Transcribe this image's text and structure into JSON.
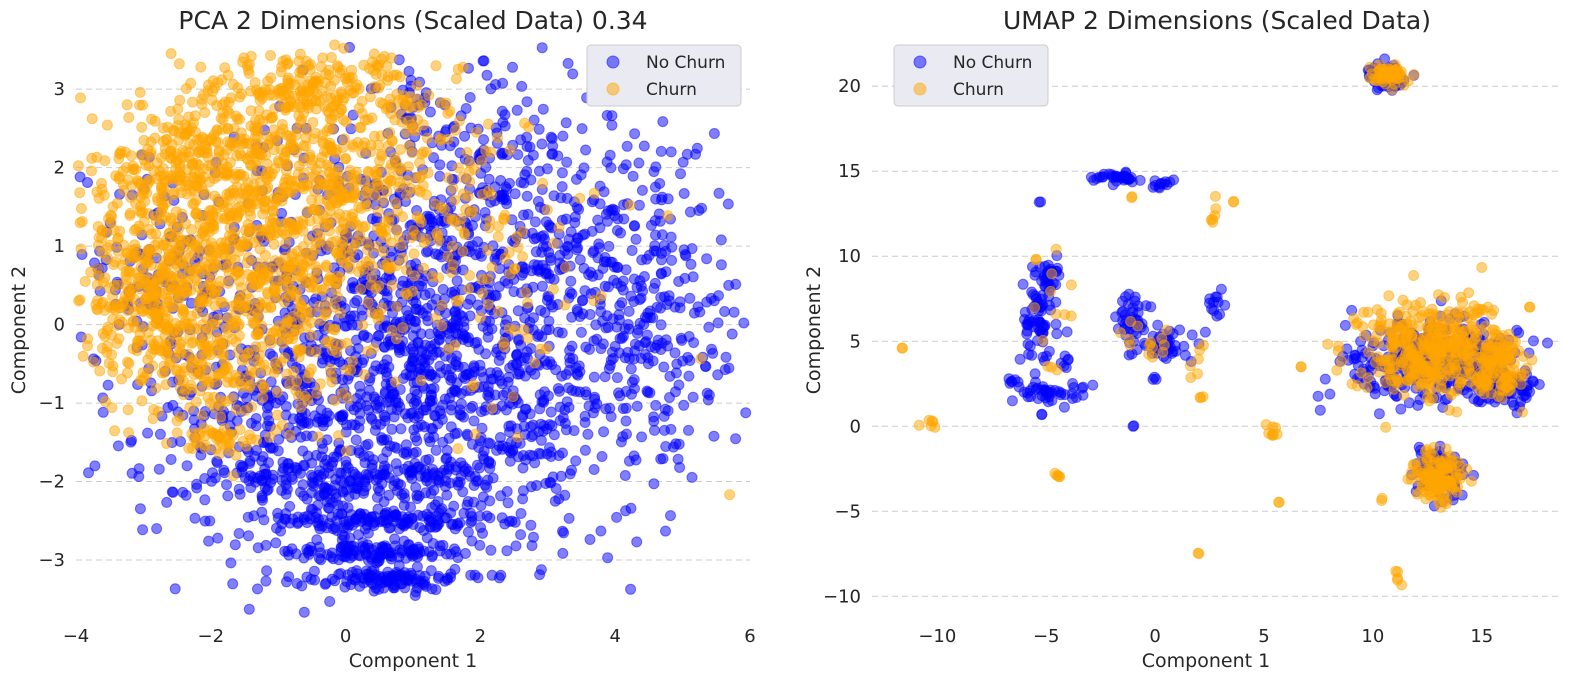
{
  "colors": {
    "no_churn": "#0000ff",
    "churn": "#ffa500",
    "grid": "#cccccc",
    "legend_bg": "#eaeaf2"
  },
  "chart_data": [
    {
      "type": "scatter",
      "title": "PCA  2 Dimensions (Scaled Data) 0.34",
      "xlabel": "Component 1",
      "ylabel": "Component 2",
      "xlim": [
        -4,
        6
      ],
      "ylim": [
        -3.7,
        3.6
      ],
      "xticks": [
        -4,
        -2,
        0,
        2,
        4,
        6
      ],
      "xtick_labels": [
        "−4",
        "−2",
        "0",
        "2",
        "4",
        "6"
      ],
      "yticks": [
        -3,
        -2,
        -1,
        0,
        1,
        2,
        3
      ],
      "ytick_labels": [
        "−3",
        "−2",
        "−1",
        "0",
        "1",
        "2",
        "3"
      ],
      "grid": "horizontal-dashed",
      "legend_position": "top-right",
      "series": [
        {
          "name": "No Churn",
          "color_key": "no_churn",
          "clusters": [
            {
              "cx": 1.2,
              "cy": -0.4,
              "sx": 1.7,
              "sy": 1.3,
              "n": 1500
            },
            {
              "cx": 0.6,
              "cy": -3.25,
              "sx": 0.55,
              "sy": 0.06,
              "n": 110
            },
            {
              "cx": 0.4,
              "cy": -2.9,
              "sx": 0.75,
              "sy": 0.06,
              "n": 110
            },
            {
              "cx": 0.4,
              "cy": -2.5,
              "sx": 1.0,
              "sy": 0.1,
              "n": 130
            },
            {
              "cx": -0.2,
              "cy": -2.0,
              "sx": 1.3,
              "sy": 0.15,
              "n": 140
            },
            {
              "cx": -1.5,
              "cy": -1.3,
              "sx": 1.1,
              "sy": 0.45,
              "n": 120
            },
            {
              "cx": 4.7,
              "cy": -0.2,
              "sx": 0.6,
              "sy": 0.8,
              "n": 150
            },
            {
              "cx": 2.0,
              "cy": 2.2,
              "sx": 1.3,
              "sy": 0.55,
              "n": 160
            },
            {
              "cx": -2.6,
              "cy": 0.7,
              "sx": 0.7,
              "sy": 0.6,
              "n": 120
            },
            {
              "cx": 3.5,
              "cy": 1.0,
              "sx": 0.9,
              "sy": 0.7,
              "n": 150
            }
          ]
        },
        {
          "name": "Churn",
          "color_key": "churn",
          "clusters": [
            {
              "cx": -1.6,
              "cy": 1.0,
              "sx": 1.1,
              "sy": 0.8,
              "n": 850
            },
            {
              "cx": -0.8,
              "cy": 2.5,
              "sx": 1.1,
              "sy": 0.45,
              "n": 260
            },
            {
              "cx": -0.2,
              "cy": 3.1,
              "sx": 0.9,
              "sy": 0.18,
              "n": 120
            },
            {
              "cx": -3.0,
              "cy": 0.3,
              "sx": 0.45,
              "sy": 0.65,
              "n": 200
            },
            {
              "cx": -2.4,
              "cy": 2.1,
              "sx": 0.55,
              "sy": 0.3,
              "n": 120
            },
            {
              "cx": 0.6,
              "cy": 1.6,
              "sx": 1.0,
              "sy": 0.7,
              "n": 230
            },
            {
              "cx": -1.6,
              "cy": -0.6,
              "sx": 0.7,
              "sy": 0.45,
              "n": 140
            },
            {
              "cx": -1.9,
              "cy": -1.5,
              "sx": 0.3,
              "sy": 0.08,
              "n": 40
            },
            {
              "cx": 1.6,
              "cy": 0.2,
              "sx": 1.3,
              "sy": 0.9,
              "n": 70
            }
          ]
        }
      ]
    },
    {
      "type": "scatter",
      "title": "UMAP  2 Dimensions (Scaled Data)",
      "xlabel": "Component 1",
      "ylabel": "Component 2",
      "xlim": [
        -13,
        18.5
      ],
      "ylim": [
        -11.1,
        22.6
      ],
      "xticks": [
        -10,
        -5,
        0,
        5,
        10,
        15
      ],
      "xtick_labels": [
        "−10",
        "−5",
        "0",
        "5",
        "10",
        "15"
      ],
      "yticks": [
        -10,
        -5,
        0,
        5,
        10,
        15,
        20
      ],
      "ytick_labels": [
        "−10",
        "−5",
        "0",
        "5",
        "10",
        "15",
        "20"
      ],
      "grid": "horizontal-dashed",
      "legend_position": "top-left",
      "series": [
        {
          "name": "No Churn",
          "color_key": "no_churn",
          "clusters": [
            {
              "cx": 10.6,
              "cy": 20.6,
              "sx": 0.45,
              "sy": 0.35,
              "n": 80
            },
            {
              "cx": 12.8,
              "cy": 3.8,
              "sx": 2.0,
              "sy": 1.2,
              "n": 320
            },
            {
              "cx": 16.0,
              "cy": 2.2,
              "sx": 0.7,
              "sy": 0.6,
              "n": 80
            },
            {
              "cx": 13.0,
              "cy": -2.6,
              "sx": 0.55,
              "sy": 0.7,
              "n": 80
            },
            {
              "cx": -5.3,
              "cy": 6.5,
              "sx": 0.45,
              "sy": 1.4,
              "n": 70
            },
            {
              "cx": -4.9,
              "cy": 8.8,
              "sx": 0.3,
              "sy": 0.4,
              "n": 25
            },
            {
              "cx": -4.8,
              "cy": 2.0,
              "sx": 0.8,
              "sy": 0.4,
              "n": 45
            },
            {
              "cx": -1.1,
              "cy": 6.2,
              "sx": 0.35,
              "sy": 0.9,
              "n": 40
            },
            {
              "cx": 0.6,
              "cy": 4.8,
              "sx": 0.7,
              "sy": 0.6,
              "n": 40
            },
            {
              "cx": -1.6,
              "cy": 14.6,
              "sx": 0.4,
              "sy": 0.15,
              "n": 25
            },
            {
              "cx": 0.3,
              "cy": 14.3,
              "sx": 0.3,
              "sy": 0.15,
              "n": 12
            },
            {
              "cx": 2.8,
              "cy": 7.4,
              "sx": 0.2,
              "sy": 0.5,
              "n": 12
            },
            {
              "cx": -6.6,
              "cy": 2.6,
              "sx": 0.2,
              "sy": 0.12,
              "n": 6
            },
            {
              "cx": -2.7,
              "cy": 14.6,
              "sx": 0.2,
              "sy": 0.06,
              "n": 6
            },
            {
              "cx": -4.2,
              "cy": 3.7,
              "sx": 0.12,
              "sy": 0.25,
              "n": 6
            },
            {
              "cx": -5.3,
              "cy": 13.2,
              "sx": 0.02,
              "sy": 0.02,
              "n": 2
            },
            {
              "cx": -5.2,
              "cy": 0.7,
              "sx": 0.02,
              "sy": 0.02,
              "n": 2
            },
            {
              "cx": -1.0,
              "cy": 0.0,
              "sx": 0.02,
              "sy": 0.02,
              "n": 2
            },
            {
              "cx": 0.0,
              "cy": 2.8,
              "sx": 0.1,
              "sy": 0.1,
              "n": 3
            }
          ]
        },
        {
          "name": "Churn",
          "color_key": "churn",
          "clusters": [
            {
              "cx": 10.6,
              "cy": 20.6,
              "sx": 0.45,
              "sy": 0.3,
              "n": 60
            },
            {
              "cx": 12.6,
              "cy": 4.4,
              "sx": 1.6,
              "sy": 1.4,
              "n": 380
            },
            {
              "cx": 15.8,
              "cy": 3.6,
              "sx": 0.6,
              "sy": 1.0,
              "n": 110
            },
            {
              "cx": 13.0,
              "cy": -3.0,
              "sx": 0.55,
              "sy": 0.7,
              "n": 130
            },
            {
              "cx": -10.3,
              "cy": 0.2,
              "sx": 0.3,
              "sy": 0.25,
              "n": 6
            },
            {
              "cx": 5.4,
              "cy": -0.2,
              "sx": 0.12,
              "sy": 0.3,
              "n": 8
            },
            {
              "cx": -4.5,
              "cy": -2.9,
              "sx": 0.15,
              "sy": 0.1,
              "n": 5
            },
            {
              "cx": 2.7,
              "cy": 12.4,
              "sx": 0.1,
              "sy": 0.5,
              "n": 6
            },
            {
              "cx": -0.6,
              "cy": 5.0,
              "sx": 0.8,
              "sy": 0.8,
              "n": 14
            },
            {
              "cx": -4.9,
              "cy": 5.2,
              "sx": 0.5,
              "sy": 1.6,
              "n": 12
            },
            {
              "cx": 1.8,
              "cy": 3.8,
              "sx": 0.3,
              "sy": 0.6,
              "n": 6
            },
            {
              "cx": -5.5,
              "cy": 9.8,
              "sx": 0.02,
              "sy": 0.02,
              "n": 2
            },
            {
              "cx": -11.6,
              "cy": 4.6,
              "sx": 0.02,
              "sy": 0.02,
              "n": 2
            },
            {
              "cx": 6.7,
              "cy": 3.5,
              "sx": 0.02,
              "sy": 0.02,
              "n": 2
            },
            {
              "cx": 5.7,
              "cy": -4.5,
              "sx": 0.02,
              "sy": 0.02,
              "n": 2
            },
            {
              "cx": 2.0,
              "cy": -7.5,
              "sx": 0.02,
              "sy": 0.02,
              "n": 2
            },
            {
              "cx": 11.1,
              "cy": -8.8,
              "sx": 0.15,
              "sy": 0.3,
              "n": 5
            },
            {
              "cx": 10.4,
              "cy": -4.3,
              "sx": 0.05,
              "sy": 0.05,
              "n": 2
            },
            {
              "cx": 14.8,
              "cy": 6.8,
              "sx": 0.3,
              "sy": 0.3,
              "n": 5
            },
            {
              "cx": 17.2,
              "cy": 7.0,
              "sx": 0.02,
              "sy": 0.02,
              "n": 2
            },
            {
              "cx": -1.1,
              "cy": 13.5,
              "sx": 0.02,
              "sy": 0.02,
              "n": 2
            },
            {
              "cx": 3.6,
              "cy": 13.2,
              "sx": 0.02,
              "sy": 0.02,
              "n": 2
            },
            {
              "cx": 2.1,
              "cy": 1.6,
              "sx": 0.05,
              "sy": 0.1,
              "n": 3
            }
          ]
        }
      ]
    }
  ]
}
